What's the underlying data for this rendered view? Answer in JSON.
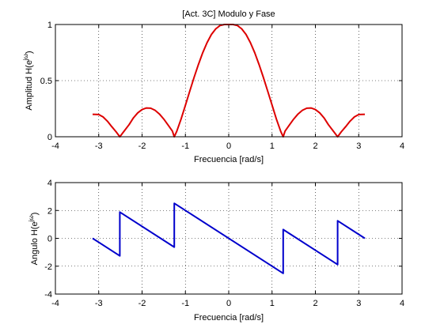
{
  "chart_data": [
    {
      "type": "line",
      "title": "[Act. 3C] Modulo y Fase",
      "xlabel": "Frecuencia [rad/s]",
      "ylabel_main": "Amplitud H(e",
      "ylabel_sup": "jω",
      "ylabel_close": ")",
      "xlim": [
        -4,
        4
      ],
      "ylim": [
        0,
        1
      ],
      "xticks": [
        -4,
        -3,
        -2,
        -1,
        0,
        1,
        2,
        3,
        4
      ],
      "yticks": [
        0,
        0.5,
        1
      ],
      "xtick_labels": [
        "-4",
        "-3",
        "-2",
        "-1",
        "0",
        "1",
        "2",
        "3",
        "4"
      ],
      "ytick_labels": [
        "0",
        "0.5",
        "1"
      ],
      "grid": true,
      "series": [
        {
          "color": "#dd0000",
          "x": [
            -3.1416,
            -3.0,
            -2.9,
            -2.8,
            -2.7,
            -2.6,
            -2.5133,
            -2.4,
            -2.3,
            -2.2,
            -2.1,
            -2.0,
            -1.9,
            -1.8,
            -1.7,
            -1.6,
            -1.5,
            -1.4,
            -1.3,
            -1.2566,
            -1.2,
            -1.1,
            -1.0,
            -0.9,
            -0.8,
            -0.7,
            -0.6,
            -0.5,
            -0.4,
            -0.3,
            -0.2,
            -0.1,
            0.0,
            0.1,
            0.2,
            0.3,
            0.4,
            0.5,
            0.6,
            0.7,
            0.8,
            0.9,
            1.0,
            1.1,
            1.2,
            1.2566,
            1.3,
            1.4,
            1.5,
            1.6,
            1.7,
            1.8,
            1.9,
            2.0,
            2.1,
            2.2,
            2.3,
            2.4,
            2.5133,
            2.6,
            2.7,
            2.8,
            2.9,
            3.0,
            3.1416
          ],
          "y": [
            0.2,
            0.198,
            0.177,
            0.139,
            0.09,
            0.045,
            0.0,
            0.057,
            0.108,
            0.168,
            0.213,
            0.242,
            0.256,
            0.254,
            0.236,
            0.203,
            0.158,
            0.105,
            0.051,
            0.0,
            0.048,
            0.158,
            0.281,
            0.405,
            0.528,
            0.644,
            0.748,
            0.838,
            0.911,
            0.961,
            0.991,
            1.0,
            1.0,
            1.0,
            0.991,
            0.961,
            0.911,
            0.838,
            0.748,
            0.644,
            0.528,
            0.405,
            0.281,
            0.158,
            0.048,
            0.0,
            0.051,
            0.105,
            0.158,
            0.203,
            0.236,
            0.254,
            0.256,
            0.242,
            0.213,
            0.168,
            0.108,
            0.057,
            0.0,
            0.045,
            0.09,
            0.139,
            0.177,
            0.198,
            0.2
          ]
        }
      ]
    },
    {
      "type": "line",
      "title": "",
      "xlabel": "Frecuencia [rad/s]",
      "ylabel_main": "Angulo H(e",
      "ylabel_sup": "jω",
      "ylabel_close": ")",
      "xlim": [
        -4,
        4
      ],
      "ylim": [
        -4,
        4
      ],
      "xticks": [
        -4,
        -3,
        -2,
        -1,
        0,
        1,
        2,
        3,
        4
      ],
      "yticks": [
        -4,
        -2,
        0,
        2,
        4
      ],
      "xtick_labels": [
        "-4",
        "-3",
        "-2",
        "-1",
        "0",
        "1",
        "2",
        "3",
        "4"
      ],
      "ytick_labels": [
        "-4",
        "-2",
        "0",
        "2",
        "4"
      ],
      "grid": true,
      "series": [
        {
          "color": "#0000cc",
          "x": [
            -3.1416,
            -2.5133,
            -2.5133,
            -2.5133,
            -1.2566,
            -1.2566,
            1.2566,
            1.2566,
            2.5133,
            2.5133,
            3.1416
          ],
          "y": [
            0.0,
            -1.257,
            0.3,
            1.885,
            -0.628,
            2.513,
            -2.513,
            0.628,
            -1.885,
            1.257,
            0.0
          ]
        }
      ]
    }
  ]
}
